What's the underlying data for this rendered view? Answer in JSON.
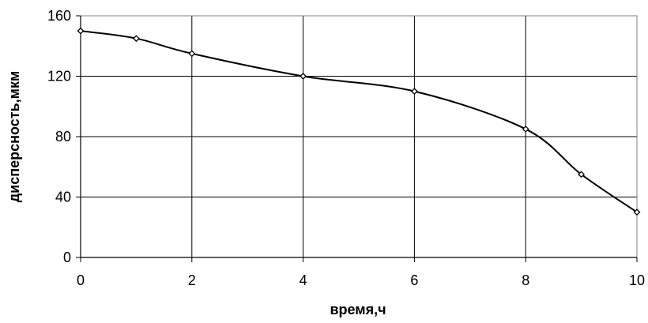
{
  "chart_data": {
    "type": "line",
    "title": "",
    "xlabel": "время,ч",
    "ylabel": "дисперсность,мкм",
    "xlim": [
      0,
      10
    ],
    "ylim": [
      0,
      160
    ],
    "xticks": [
      0,
      2,
      4,
      6,
      8,
      10
    ],
    "yticks": [
      0,
      40,
      80,
      120,
      160
    ],
    "grid": true,
    "legend": "none",
    "series": [
      {
        "color": "#000000",
        "marker": "diamond",
        "smooth": true,
        "x": [
          0,
          1,
          2,
          4,
          6,
          8,
          9,
          10
        ],
        "y": [
          150,
          145,
          135,
          120,
          110,
          85,
          55,
          30
        ]
      }
    ]
  }
}
